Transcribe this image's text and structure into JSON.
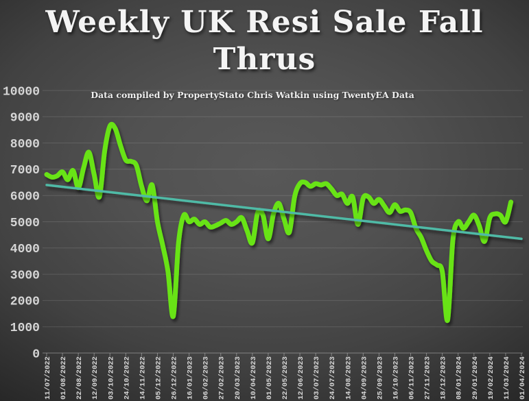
{
  "title_lines": [
    "Weekly UK Resi Sale Fall",
    "Thrus"
  ],
  "colors": {
    "background_center": "#585858",
    "background_edge": "#1f1f1f",
    "series_green": "#68E317",
    "trendline_teal": "#4FBAA6",
    "gridline": "rgba(255,255,255,0.13)",
    "axis_line": "rgba(255,255,255,0.35)",
    "axis_text": "#d6d6d6",
    "title_text": "#f4f4f4"
  },
  "chart_data": {
    "type": "line",
    "title": "Weekly UK Resi Sale Fall Thrus",
    "subtitle": "Data compiled by PropertyStato Chris Watkin using TwentyEA Data",
    "xlabel": "",
    "ylabel": "",
    "ylim": [
      0,
      10000
    ],
    "y_ticks": [
      0,
      1000,
      2000,
      3000,
      4000,
      5000,
      6000,
      7000,
      8000,
      9000,
      10000
    ],
    "grid": "horizontal",
    "legend": "none",
    "x_tick_labels": [
      "11/07/2022",
      "01/08/2022",
      "22/08/2022",
      "12/09/2022",
      "03/10/2022",
      "24/10/2022",
      "14/11/2022",
      "05/12/2022",
      "26/12/2022",
      "16/01/2023",
      "06/02/2023",
      "27/02/2023",
      "20/03/2023",
      "10/04/2023",
      "01/05/2023",
      "22/05/2023",
      "12/06/2023",
      "03/07/2023",
      "24/07/2023",
      "14/08/2023",
      "04/09/2023",
      "25/09/2023",
      "16/10/2023",
      "06/11/2023",
      "27/11/2023",
      "18/12/2023",
      "08/01/2024",
      "29/01/2024",
      "19/02/2024",
      "11/03/2024",
      "01/04/2024"
    ],
    "x_tick_interval_weeks": 3,
    "x": [
      "11/07/2022",
      "18/07/2022",
      "25/07/2022",
      "01/08/2022",
      "08/08/2022",
      "15/08/2022",
      "22/08/2022",
      "29/08/2022",
      "05/09/2022",
      "12/09/2022",
      "19/09/2022",
      "26/09/2022",
      "03/10/2022",
      "10/10/2022",
      "17/10/2022",
      "24/10/2022",
      "31/10/2022",
      "07/11/2022",
      "14/11/2022",
      "21/11/2022",
      "28/11/2022",
      "05/12/2022",
      "12/12/2022",
      "19/12/2022",
      "26/12/2022",
      "02/01/2023",
      "09/01/2023",
      "16/01/2023",
      "23/01/2023",
      "30/01/2023",
      "06/02/2023",
      "13/02/2023",
      "20/02/2023",
      "27/02/2023",
      "06/03/2023",
      "13/03/2023",
      "20/03/2023",
      "27/03/2023",
      "03/04/2023",
      "10/04/2023",
      "17/04/2023",
      "24/04/2023",
      "01/05/2023",
      "08/05/2023",
      "15/05/2023",
      "22/05/2023",
      "29/05/2023",
      "05/06/2023",
      "12/06/2023",
      "19/06/2023",
      "26/06/2023",
      "03/07/2023",
      "10/07/2023",
      "17/07/2023",
      "24/07/2023",
      "31/07/2023",
      "07/08/2023",
      "14/08/2023",
      "21/08/2023",
      "28/08/2023",
      "04/09/2023",
      "11/09/2023",
      "18/09/2023",
      "25/09/2023",
      "02/10/2023",
      "09/10/2023",
      "16/10/2023",
      "23/10/2023",
      "30/10/2023",
      "06/11/2023",
      "13/11/2023",
      "20/11/2023",
      "27/11/2023",
      "04/12/2023",
      "11/12/2023",
      "18/12/2023",
      "25/12/2023",
      "01/01/2024",
      "08/01/2024",
      "15/01/2024",
      "22/01/2024",
      "29/01/2024",
      "05/02/2024",
      "12/02/2024",
      "19/02/2024",
      "26/02/2024",
      "04/03/2024",
      "11/03/2024",
      "18/03/2024"
    ],
    "series": [
      {
        "name": "Weekly UK residential sale fall throughs",
        "color": "#68E317",
        "values": [
          6800,
          6700,
          6750,
          6900,
          6600,
          6950,
          6300,
          7050,
          7650,
          6800,
          5950,
          7700,
          8650,
          8550,
          7900,
          7350,
          7300,
          7150,
          6350,
          5800,
          6400,
          5000,
          4100,
          3100,
          1400,
          4200,
          5250,
          5000,
          5100,
          4900,
          5000,
          4800,
          4850,
          4950,
          5050,
          4900,
          5000,
          5150,
          4650,
          4200,
          5350,
          5250,
          4350,
          5300,
          5700,
          5100,
          4600,
          5950,
          6450,
          6500,
          6350,
          6450,
          6400,
          6450,
          6250,
          6000,
          6050,
          5700,
          5950,
          4900,
          5900,
          5950,
          5700,
          5850,
          5600,
          5350,
          5650,
          5400,
          5450,
          5350,
          4750,
          4400,
          3900,
          3500,
          3350,
          3100,
          1250,
          4300,
          5000,
          4750,
          5000,
          5250,
          4850,
          4250,
          5150,
          5300,
          5250,
          5000,
          5750
        ]
      },
      {
        "name": "Linear trendline",
        "color": "#4FBAA6",
        "trend": {
          "start_value": 6400,
          "end_value": 4350
        }
      }
    ]
  }
}
